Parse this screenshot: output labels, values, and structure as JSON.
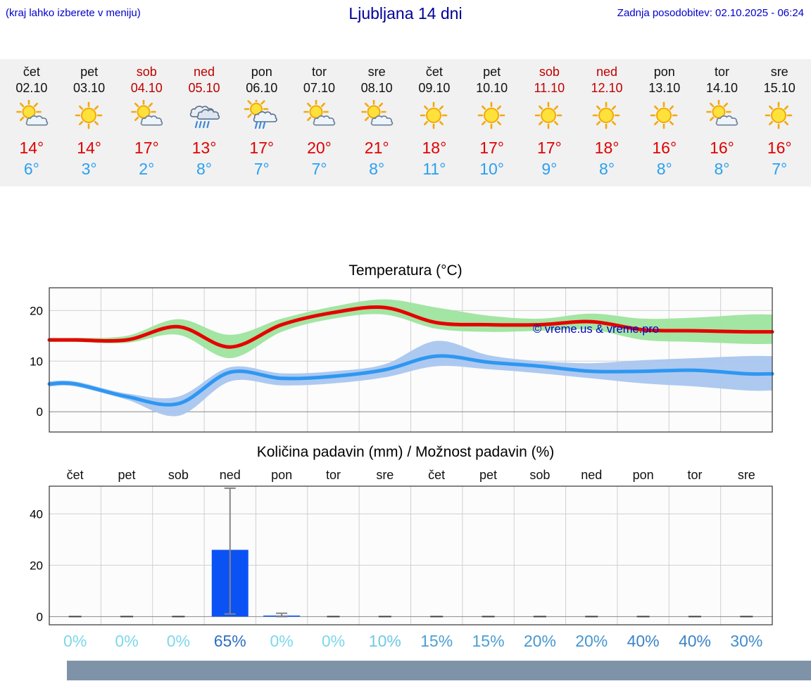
{
  "header": {
    "note": "(kraj lahko izberete v meniju)",
    "title": "Ljubljana 14 dni",
    "updated": "Zadnja posodobitev: 02.10.2025 - 06:24"
  },
  "colors": {
    "link_blue": "#0000cc",
    "title_blue": "#000099",
    "weekend_red": "#c00000",
    "tmax_red": "#e00000",
    "tmin_blue": "#2aa0f0",
    "strip_bg": "#f1f1f1",
    "grid": "#d0d0d0",
    "zero_line": "#888888",
    "frame": "#333333",
    "bar_blue": "#0b52f5",
    "whisker_gray": "#858585",
    "footer_bar": "#7e93a8"
  },
  "forecast_strip": {
    "days": [
      {
        "day": "čet",
        "date": "02.10",
        "is_weekend": false,
        "icon": "partly-sunny",
        "tmax": "14°",
        "tmin": "6°"
      },
      {
        "day": "pet",
        "date": "03.10",
        "is_weekend": false,
        "icon": "sunny",
        "tmax": "14°",
        "tmin": "3°"
      },
      {
        "day": "sob",
        "date": "04.10",
        "is_weekend": true,
        "icon": "partly-sunny",
        "tmax": "17°",
        "tmin": "2°"
      },
      {
        "day": "ned",
        "date": "05.10",
        "is_weekend": true,
        "icon": "rain",
        "tmax": "13°",
        "tmin": "8°"
      },
      {
        "day": "pon",
        "date": "06.10",
        "is_weekend": false,
        "icon": "sun-showers",
        "tmax": "17°",
        "tmin": "7°"
      },
      {
        "day": "tor",
        "date": "07.10",
        "is_weekend": false,
        "icon": "partly-sunny",
        "tmax": "20°",
        "tmin": "7°"
      },
      {
        "day": "sre",
        "date": "08.10",
        "is_weekend": false,
        "icon": "partly-sunny",
        "tmax": "21°",
        "tmin": "8°"
      },
      {
        "day": "čet",
        "date": "09.10",
        "is_weekend": false,
        "icon": "sunny",
        "tmax": "18°",
        "tmin": "11°"
      },
      {
        "day": "pet",
        "date": "10.10",
        "is_weekend": false,
        "icon": "sunny",
        "tmax": "17°",
        "tmin": "10°"
      },
      {
        "day": "sob",
        "date": "11.10",
        "is_weekend": true,
        "icon": "sunny",
        "tmax": "17°",
        "tmin": "9°"
      },
      {
        "day": "ned",
        "date": "12.10",
        "is_weekend": true,
        "icon": "sunny",
        "tmax": "18°",
        "tmin": "8°"
      },
      {
        "day": "pon",
        "date": "13.10",
        "is_weekend": false,
        "icon": "sunny",
        "tmax": "16°",
        "tmin": "8°"
      },
      {
        "day": "tor",
        "date": "14.10",
        "is_weekend": false,
        "icon": "partly-sunny",
        "tmax": "16°",
        "tmin": "8°"
      },
      {
        "day": "sre",
        "date": "15.10",
        "is_weekend": false,
        "icon": "sunny",
        "tmax": "16°",
        "tmin": "7°"
      }
    ]
  },
  "chart_data": [
    {
      "type": "line",
      "title": "Temperatura (°C)",
      "categories": [
        "čet",
        "pet",
        "sob",
        "ned",
        "pon",
        "tor",
        "sre",
        "čet",
        "pet",
        "sob",
        "ned",
        "pon",
        "tor",
        "sre"
      ],
      "series": [
        {
          "name": "tmax",
          "color": "#e60000",
          "values": [
            14.2,
            14.2,
            16.8,
            12.8,
            17.2,
            19.6,
            20.6,
            17.6,
            17.2,
            17.2,
            17.8,
            16.2,
            16.0,
            15.8
          ],
          "band_upper": [
            14.6,
            15.0,
            18.3,
            15.2,
            18.4,
            20.8,
            22.2,
            20.6,
            19.0,
            18.4,
            19.4,
            18.4,
            18.6,
            19.2
          ],
          "band_lower": [
            13.8,
            13.6,
            15.2,
            10.6,
            15.8,
            18.4,
            19.2,
            16.4,
            15.8,
            16.0,
            16.2,
            14.2,
            13.8,
            13.4
          ],
          "band_color": "#9ee49e"
        },
        {
          "name": "tmin",
          "color": "#2e97f2",
          "values": [
            5.5,
            3.0,
            1.6,
            7.8,
            6.6,
            7.0,
            8.3,
            11.0,
            9.8,
            9.0,
            8.0,
            8.0,
            8.2,
            7.5
          ],
          "band_upper": [
            6.0,
            3.6,
            3.0,
            8.8,
            7.6,
            8.0,
            9.4,
            14.0,
            11.2,
            10.0,
            9.6,
            10.2,
            10.6,
            11.0
          ],
          "band_lower": [
            5.0,
            2.4,
            -0.8,
            6.0,
            5.2,
            5.6,
            6.8,
            9.0,
            8.4,
            7.6,
            6.6,
            5.6,
            5.0,
            4.2
          ],
          "band_color": "#a9c6ef"
        }
      ],
      "yticks": [
        0,
        10,
        20
      ],
      "ylim": [
        -4,
        24.5
      ],
      "grid": true,
      "watermark": "© vreme.us & vreme.pro"
    },
    {
      "type": "bar",
      "title": "Količina padavin (mm) / Možnost padavin (%)",
      "categories": [
        "čet",
        "pet",
        "sob",
        "ned",
        "pon",
        "tor",
        "sre",
        "čet",
        "pet",
        "sob",
        "ned",
        "pon",
        "tor",
        "sre"
      ],
      "values": [
        0,
        0,
        0,
        26,
        0.4,
        0,
        0,
        0,
        0,
        0,
        0,
        0,
        0,
        0
      ],
      "whisker_high": [
        0,
        0,
        0,
        50,
        1.3,
        0,
        0,
        0,
        0,
        0,
        0,
        0,
        0,
        0
      ],
      "whisker_low": [
        0,
        0,
        0,
        1,
        0,
        0,
        0,
        0,
        0,
        0,
        0,
        0,
        0,
        0
      ],
      "yticks": [
        0,
        20,
        40
      ],
      "ylim": [
        -3.2,
        50.8
      ],
      "grid": true,
      "probabilities": [
        {
          "label": "0%",
          "color": "#7ed7ea"
        },
        {
          "label": "0%",
          "color": "#7ed7ea"
        },
        {
          "label": "0%",
          "color": "#7ed7ea"
        },
        {
          "label": "65%",
          "color": "#2d6fc1"
        },
        {
          "label": "0%",
          "color": "#7ed7ea"
        },
        {
          "label": "0%",
          "color": "#7ed7ea"
        },
        {
          "label": "10%",
          "color": "#6fc9e4"
        },
        {
          "label": "15%",
          "color": "#4d9fd4"
        },
        {
          "label": "15%",
          "color": "#4d9fd4"
        },
        {
          "label": "20%",
          "color": "#4796cf"
        },
        {
          "label": "20%",
          "color": "#4796cf"
        },
        {
          "label": "40%",
          "color": "#3b83c6"
        },
        {
          "label": "40%",
          "color": "#3b83c6"
        },
        {
          "label": "30%",
          "color": "#418cca"
        }
      ]
    }
  ]
}
